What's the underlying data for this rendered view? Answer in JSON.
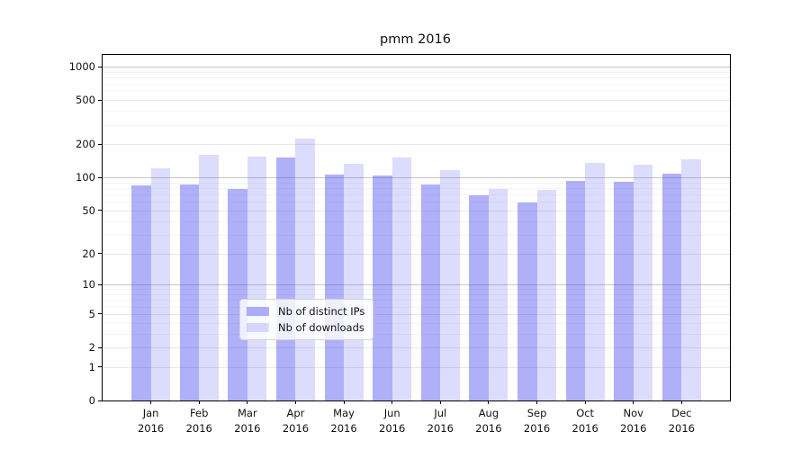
{
  "title": "pmm 2016",
  "chart_data": {
    "type": "bar",
    "title": "pmm 2016",
    "yscale": "log1p",
    "ylim": [
      0,
      1276
    ],
    "grid": true,
    "categories": [
      "Jan 2016",
      "Feb 2016",
      "Mar 2016",
      "Apr 2016",
      "May 2016",
      "Jun 2016",
      "Jul 2016",
      "Aug 2016",
      "Sep 2016",
      "Oct 2016",
      "Nov 2016",
      "Dec 2016"
    ],
    "series": [
      {
        "name": "Nb of distinct IPs",
        "color": "rgba(80,80,240,0.45)",
        "values": [
          84,
          87,
          78,
          151,
          106,
          104,
          87,
          69,
          59,
          94,
          91,
          108
        ]
      },
      {
        "name": "Nb of downloads",
        "color": "rgba(80,80,240,0.2)",
        "values": [
          122,
          161,
          155,
          227,
          134,
          153,
          116,
          79,
          77,
          136,
          131,
          145
        ]
      }
    ],
    "yticks": [
      0,
      1,
      2,
      5,
      10,
      20,
      50,
      100,
      200,
      500,
      1000
    ],
    "yticks_emphasis": [
      10,
      100,
      1000
    ],
    "yticks_minor": [
      3,
      4,
      6,
      7,
      8,
      9,
      30,
      40,
      60,
      70,
      80,
      90,
      300,
      400,
      600,
      700,
      800,
      900
    ],
    "legend_position": "lower center"
  },
  "colors": {
    "grid_minor": "#f4f4f4",
    "grid_major": "#e8e8e8",
    "grid_emphasis": "#c6c6c6",
    "axis": "#000000",
    "text": "#111111",
    "legend_border": "#d4d4d4",
    "legend_bg": "rgba(255,255,255,0.8)"
  }
}
